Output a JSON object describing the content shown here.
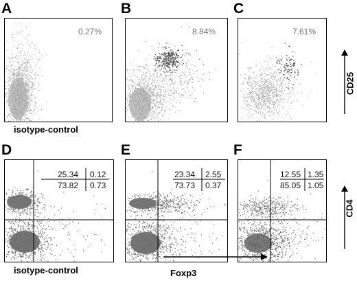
{
  "figure": {
    "top_xlabel_left": "isotype-control",
    "bottom_xlabel_left": "isotype-control",
    "bottom_xlabel_mid": "Foxp3",
    "top_ylabel": "CD25",
    "bottom_ylabel": "CD4"
  },
  "chart_data": [
    {
      "type": "scatter",
      "panel": "A",
      "marker": "CD25",
      "gate_percent": "0.27%"
    },
    {
      "type": "scatter",
      "panel": "B",
      "marker": "CD25",
      "gate_percent": "8.84%"
    },
    {
      "type": "scatter",
      "panel": "C",
      "marker": "CD25",
      "gate_percent": "7.61%"
    },
    {
      "type": "scatter",
      "panel": "D",
      "marker": "CD4",
      "quadrants": {
        "upper_left": "25.34",
        "upper_right": "0.12",
        "lower_left": "73.82",
        "lower_right": "0.73"
      }
    },
    {
      "type": "scatter",
      "panel": "E",
      "marker": "CD4",
      "quadrants": {
        "upper_left": "23.34",
        "upper_right": "2.55",
        "lower_left": "73.73",
        "lower_right": "0.37"
      }
    },
    {
      "type": "scatter",
      "panel": "F",
      "marker": "CD4",
      "quadrants": {
        "upper_left": "12.55",
        "upper_right": "1.35",
        "lower_left": "85.05",
        "lower_right": "1.05"
      }
    }
  ]
}
